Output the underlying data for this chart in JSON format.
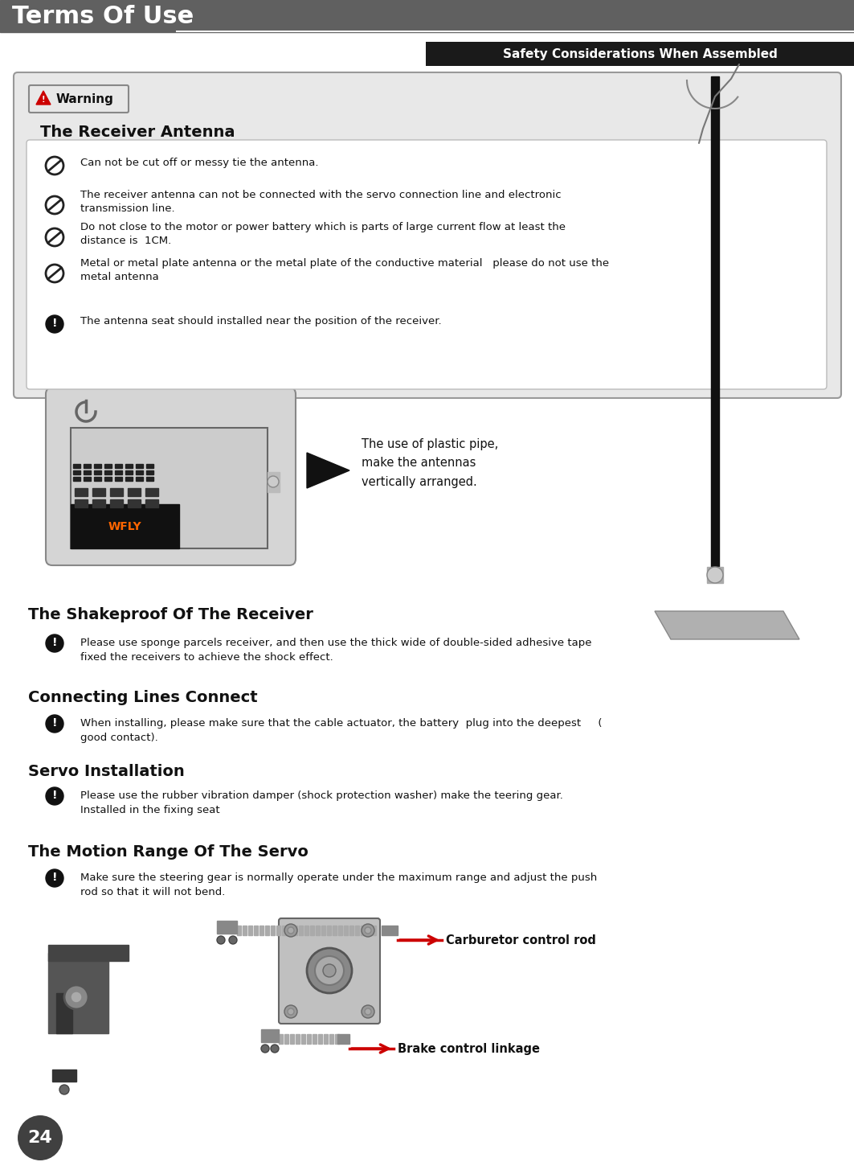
{
  "page_bg": "#ffffff",
  "header_bg": "#606060",
  "header_text": "Terms Of Use",
  "header_text_color": "#ffffff",
  "subheader_bg": "#1a1a1a",
  "subheader_text": "Safety Considerations When Assembled",
  "subheader_text_color": "#ffffff",
  "section1_title": "The Receiver Antenna",
  "section2_title": "The Shakeproof Of The Receiver",
  "section3_title": "Connecting Lines Connect",
  "section4_title": "Servo Installation",
  "section5_title": "The Motion Range Of The Servo",
  "antenna_items": [
    "Can not be cut off or messy tie the antenna.",
    "The receiver antenna can not be connected with the servo connection line and electronic\ntransmission line.",
    "Do not close to the motor or power battery which is parts of large current flow at least the\ndistance is  1CM.",
    "Metal or metal plate antenna or the metal plate of the conductive material   please do not use the\nmetal antenna",
    "The antenna seat should installed near the position of the receiver."
  ],
  "antenna_icons": [
    "no",
    "no",
    "no",
    "no",
    "warn"
  ],
  "plastic_pipe_text": "The use of plastic pipe,\nmake the antennas\nvertically arranged.",
  "shakeproof_text": "Please use sponge parcels receiver, and then use the thick wide of double-sided adhesive tape\nfixed the receivers to achieve the shock effect.",
  "connecting_text": "When installing, please make sure that the cable actuator, the battery  plug into the deepest     (\ngood contact).",
  "servo_text": "Please use the rubber vibration damper (shock protection washer) make the teering gear.\nInstalled in the fixing seat",
  "motion_text": "Make sure the steering gear is normally operate under the maximum range and adjust the push\nrod so that it will not bend.",
  "carburetor_label": "Carburetor control rod",
  "brake_label": "Brake control linkage",
  "page_number": "24",
  "footer_bg": "#404040",
  "footer_text_color": "#ffffff"
}
